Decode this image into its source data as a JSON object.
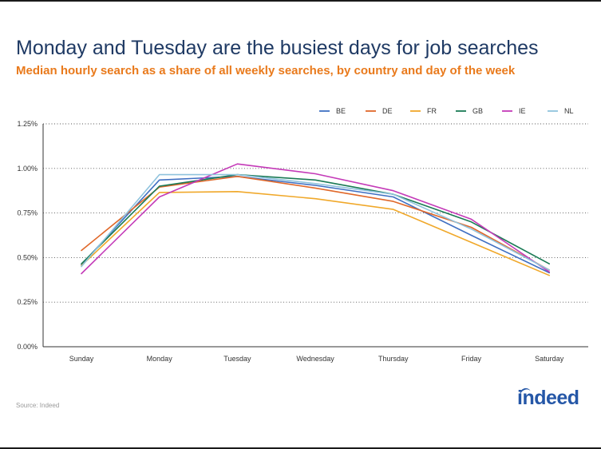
{
  "header": {
    "title": "Monday and Tuesday are the busiest days for job searches",
    "subtitle": "Median hourly search as a share of all weekly searches, by country and day of the week"
  },
  "footer": {
    "source": "Source: Indeed",
    "logo_text": "indeed"
  },
  "colors": {
    "title": "#1f3a64",
    "subtitle": "#e97a1c",
    "logo": "#2557a7"
  },
  "chart_data": {
    "type": "line",
    "title": "",
    "xlabel": "",
    "ylabel": "",
    "categories": [
      "Sunday",
      "Monday",
      "Tuesday",
      "Wednesday",
      "Thursday",
      "Friday",
      "Saturday"
    ],
    "ylim": [
      0,
      1.25
    ],
    "yticks": [
      0,
      0.25,
      0.5,
      0.75,
      1.0,
      1.25
    ],
    "ytick_labels": [
      "0.00%",
      "0.25%",
      "0.50%",
      "0.75%",
      "1.00%",
      "1.25%"
    ],
    "grid": "horizontal-dotted",
    "legend_position": "top-right",
    "series": [
      {
        "name": "BE",
        "color": "#3f6fc2",
        "values": [
          0.46,
          0.935,
          0.955,
          0.905,
          0.84,
          0.625,
          0.415
        ]
      },
      {
        "name": "DE",
        "color": "#e0682a",
        "values": [
          0.54,
          0.895,
          0.955,
          0.89,
          0.815,
          0.67,
          0.43
        ]
      },
      {
        "name": "FR",
        "color": "#f0a82a",
        "values": [
          0.455,
          0.865,
          0.87,
          0.83,
          0.77,
          0.585,
          0.4
        ]
      },
      {
        "name": "GB",
        "color": "#1a7a55",
        "values": [
          0.465,
          0.9,
          0.965,
          0.935,
          0.855,
          0.7,
          0.465
        ]
      },
      {
        "name": "IE",
        "color": "#c43ab8",
        "values": [
          0.41,
          0.84,
          1.025,
          0.97,
          0.875,
          0.715,
          0.42
        ]
      },
      {
        "name": "NL",
        "color": "#8fc3dd",
        "values": [
          0.45,
          0.965,
          0.965,
          0.915,
          0.855,
          0.66,
          0.43
        ]
      }
    ]
  }
}
